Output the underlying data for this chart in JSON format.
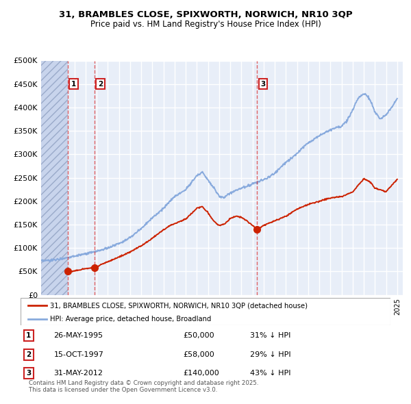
{
  "title1": "31, BRAMBLES CLOSE, SPIXWORTH, NORWICH, NR10 3QP",
  "title2": "Price paid vs. HM Land Registry's House Price Index (HPI)",
  "ylabel_ticks": [
    "£0",
    "£50K",
    "£100K",
    "£150K",
    "£200K",
    "£250K",
    "£300K",
    "£350K",
    "£400K",
    "£450K",
    "£500K"
  ],
  "ytick_values": [
    0,
    50000,
    100000,
    150000,
    200000,
    250000,
    300000,
    350000,
    400000,
    450000,
    500000
  ],
  "xlim_start": 1993.0,
  "xlim_end": 2025.5,
  "ylim_min": 0,
  "ylim_max": 500000,
  "background_color": "#e8eef8",
  "grid_color": "#ffffff",
  "sale_color": "#cc2200",
  "hpi_color": "#88aadd",
  "transactions": [
    {
      "label": 1,
      "date_str": "26-MAY-1995",
      "year": 1995.4,
      "price": 50000
    },
    {
      "label": 2,
      "date_str": "15-OCT-1997",
      "year": 1997.79,
      "price": 58000
    },
    {
      "label": 3,
      "date_str": "31-MAY-2012",
      "year": 2012.41,
      "price": 140000
    }
  ],
  "legend_label_red": "31, BRAMBLES CLOSE, SPIXWORTH, NORWICH, NR10 3QP (detached house)",
  "legend_label_blue": "HPI: Average price, detached house, Broadland",
  "footnote": "Contains HM Land Registry data © Crown copyright and database right 2025.\nThis data is licensed under the Open Government Licence v3.0.",
  "table_rows": [
    {
      "label": 1,
      "date": "26-MAY-1995",
      "price": "£50,000",
      "pct": "31% ↓ HPI"
    },
    {
      "label": 2,
      "date": "15-OCT-1997",
      "price": "£58,000",
      "pct": "29% ↓ HPI"
    },
    {
      "label": 3,
      "date": "31-MAY-2012",
      "price": "£140,000",
      "pct": "43% ↓ HPI"
    }
  ],
  "hpi_years": [
    1993,
    1994,
    1995,
    1996,
    1997,
    1998,
    1999,
    2000,
    2001,
    2002,
    2003,
    2004,
    2005,
    2006,
    2007,
    2007.5,
    2008,
    2008.5,
    2009,
    2009.5,
    2010,
    2010.5,
    2011,
    2011.5,
    2012,
    2012.5,
    2013,
    2013.5,
    2014,
    2014.5,
    2015,
    2015.5,
    2016,
    2016.5,
    2017,
    2017.5,
    2018,
    2018.5,
    2019,
    2019.5,
    2020,
    2020.5,
    2021,
    2021.5,
    2022,
    2022.3,
    2022.6,
    2023,
    2023.5,
    2024,
    2024.5,
    2025
  ],
  "hpi_prices": [
    72000,
    74000,
    78000,
    83000,
    87000,
    93000,
    100000,
    110000,
    122000,
    142000,
    165000,
    185000,
    210000,
    225000,
    255000,
    262000,
    245000,
    230000,
    210000,
    208000,
    218000,
    223000,
    228000,
    232000,
    237000,
    241000,
    246000,
    252000,
    260000,
    272000,
    283000,
    292000,
    302000,
    315000,
    325000,
    332000,
    340000,
    346000,
    352000,
    358000,
    360000,
    372000,
    395000,
    420000,
    430000,
    425000,
    415000,
    390000,
    375000,
    385000,
    400000,
    420000
  ],
  "red_years": [
    1995.4,
    1996,
    1997,
    1997.79,
    1998.5,
    1999.5,
    2000.5,
    2001.5,
    2002.5,
    2003.5,
    2004.5,
    2005.5,
    2006,
    2007,
    2007.5,
    2008,
    2008.5,
    2009,
    2009.5,
    2010,
    2010.5,
    2011,
    2011.5,
    2012.41,
    2013,
    2014,
    2015,
    2016,
    2017,
    2018,
    2019,
    2020,
    2021,
    2022,
    2022.5,
    2023,
    2024,
    2025
  ],
  "red_prices": [
    50000,
    51000,
    56000,
    58000,
    66000,
    76000,
    86000,
    98000,
    112000,
    130000,
    147000,
    157000,
    162000,
    185000,
    188000,
    175000,
    158000,
    148000,
    152000,
    163000,
    168000,
    165000,
    158000,
    140000,
    148000,
    158000,
    168000,
    183000,
    193000,
    200000,
    207000,
    210000,
    220000,
    248000,
    242000,
    228000,
    220000,
    247000
  ]
}
